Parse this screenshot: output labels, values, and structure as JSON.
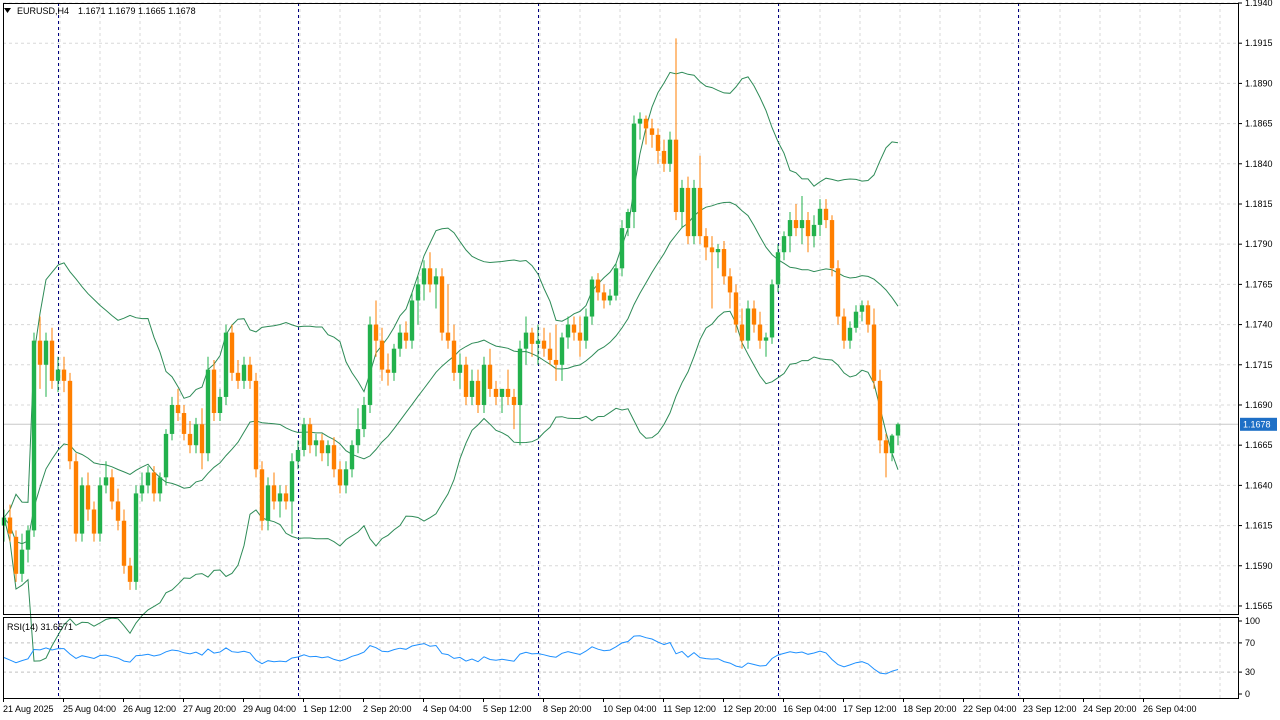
{
  "header": {
    "symbol_label": "EURUSD,H4",
    "ohlc_text": "1.1671 1.1679 1.1665 1.1678",
    "menu_icon": "triangle-down-icon"
  },
  "rsi": {
    "label": "RSI(14) 31.6571"
  },
  "current_price": {
    "label": "1.1678",
    "value": 1.1678
  },
  "colors": {
    "bull": "#22b14c",
    "bear": "#ff7f00",
    "bands": "#2e8b57",
    "rsi_line": "#1e90ff",
    "grid": "#d8d8d8",
    "separator": "#000080",
    "current_price_bg": "#1e6fc6"
  },
  "axis": {
    "price_ticks": [
      "1.1940",
      "1.1915",
      "1.1890",
      "1.1865",
      "1.1840",
      "1.1815",
      "1.1790",
      "1.1765",
      "1.1740",
      "1.1715",
      "1.1690",
      "1.1665",
      "1.1640",
      "1.1615",
      "1.1590",
      "1.1565"
    ],
    "rsi_ticks": [
      "100",
      "70",
      "30",
      "0"
    ],
    "time_labels": [
      "21 Aug 2025",
      "25 Aug 04:00",
      "26 Aug 12:00",
      "27 Aug 20:00",
      "29 Aug 04:00",
      "1 Sep 12:00",
      "2 Sep 20:00",
      "4 Sep 04:00",
      "5 Sep 12:00",
      "8 Sep 20:00",
      "10 Sep 04:00",
      "11 Sep 12:00",
      "12 Sep 20:00",
      "16 Sep 04:00",
      "17 Sep 12:00",
      "18 Sep 20:00",
      "22 Sep 04:00",
      "23 Sep 12:00",
      "24 Sep 20:00",
      "26 Sep 04:00"
    ]
  },
  "chart_data": {
    "type": "candlestick",
    "symbol": "EURUSD",
    "timeframe": "H4",
    "ylim": [
      1.156,
      1.194
    ],
    "rsi_ylim": [
      0,
      100
    ],
    "week_separators": [
      "25 Aug 2025",
      "1 Sep 2025",
      "8 Sep 2025",
      "15 Sep 2025",
      "22 Sep 2025"
    ],
    "candles": [
      [
        1.1615,
        1.1625,
        1.1605,
        1.162
      ],
      [
        1.162,
        1.1628,
        1.1605,
        1.161
      ],
      [
        1.1608,
        1.1612,
        1.158,
        1.1585
      ],
      [
        1.1585,
        1.161,
        1.158,
        1.16
      ],
      [
        1.16,
        1.1615,
        1.1592,
        1.1612
      ],
      [
        1.1612,
        1.1735,
        1.1608,
        1.173
      ],
      [
        1.173,
        1.1745,
        1.17,
        1.1715
      ],
      [
        1.1715,
        1.1735,
        1.1695,
        1.173
      ],
      [
        1.173,
        1.1738,
        1.17,
        1.1705
      ],
      [
        1.1705,
        1.172,
        1.1698,
        1.1712
      ],
      [
        1.1712,
        1.172,
        1.1698,
        1.1705
      ],
      [
        1.1705,
        1.171,
        1.165,
        1.1655
      ],
      [
        1.1655,
        1.166,
        1.1605,
        1.161
      ],
      [
        1.161,
        1.1645,
        1.1605,
        1.164
      ],
      [
        1.164,
        1.1648,
        1.1618,
        1.1625
      ],
      [
        1.1625,
        1.163,
        1.1605,
        1.161
      ],
      [
        1.161,
        1.1645,
        1.1605,
        1.164
      ],
      [
        1.164,
        1.1655,
        1.1635,
        1.1645
      ],
      [
        1.1645,
        1.165,
        1.1625,
        1.163
      ],
      [
        1.163,
        1.1638,
        1.1612,
        1.1618
      ],
      [
        1.1618,
        1.1625,
        1.1585,
        1.159
      ],
      [
        1.159,
        1.1595,
        1.1575,
        1.158
      ],
      [
        1.158,
        1.164,
        1.1575,
        1.1635
      ],
      [
        1.1635,
        1.1648,
        1.163,
        1.164
      ],
      [
        1.164,
        1.1652,
        1.1635,
        1.1648
      ],
      [
        1.1648,
        1.1652,
        1.163,
        1.1635
      ],
      [
        1.1635,
        1.1648,
        1.163,
        1.1645
      ],
      [
        1.1645,
        1.1675,
        1.164,
        1.1672
      ],
      [
        1.1672,
        1.1695,
        1.1668,
        1.169
      ],
      [
        1.169,
        1.17,
        1.168,
        1.1685
      ],
      [
        1.1685,
        1.169,
        1.1668,
        1.1672
      ],
      [
        1.1672,
        1.168,
        1.166,
        1.1665
      ],
      [
        1.1665,
        1.1682,
        1.166,
        1.1678
      ],
      [
        1.1678,
        1.1688,
        1.165,
        1.166
      ],
      [
        1.166,
        1.172,
        1.1655,
        1.1712
      ],
      [
        1.1712,
        1.1718,
        1.168,
        1.1685
      ],
      [
        1.1685,
        1.17,
        1.168,
        1.1695
      ],
      [
        1.1695,
        1.174,
        1.169,
        1.1735
      ],
      [
        1.1735,
        1.174,
        1.1705,
        1.171
      ],
      [
        1.171,
        1.1718,
        1.17,
        1.1705
      ],
      [
        1.1705,
        1.172,
        1.17,
        1.1715
      ],
      [
        1.1715,
        1.172,
        1.17,
        1.1705
      ],
      [
        1.1705,
        1.171,
        1.1645,
        1.165
      ],
      [
        1.165,
        1.1655,
        1.1612,
        1.1618
      ],
      [
        1.1618,
        1.1645,
        1.1612,
        1.164
      ],
      [
        1.164,
        1.1648,
        1.1625,
        1.163
      ],
      [
        1.163,
        1.164,
        1.162,
        1.1635
      ],
      [
        1.1635,
        1.164,
        1.1625,
        1.163
      ],
      [
        1.163,
        1.166,
        1.161,
        1.1655
      ],
      [
        1.1655,
        1.1668,
        1.165,
        1.1662
      ],
      [
        1.1662,
        1.1682,
        1.1658,
        1.1678
      ],
      [
        1.1678,
        1.1682,
        1.166,
        1.1665
      ],
      [
        1.1665,
        1.1672,
        1.1658,
        1.1668
      ],
      [
        1.1668,
        1.1672,
        1.1655,
        1.166
      ],
      [
        1.166,
        1.1668,
        1.1652,
        1.1665
      ],
      [
        1.1665,
        1.167,
        1.1645,
        1.165
      ],
      [
        1.165,
        1.1655,
        1.1635,
        1.164
      ],
      [
        1.164,
        1.1655,
        1.1635,
        1.165
      ],
      [
        1.165,
        1.1668,
        1.1645,
        1.1665
      ],
      [
        1.1665,
        1.1688,
        1.166,
        1.1675
      ],
      [
        1.1675,
        1.1695,
        1.167,
        1.169
      ],
      [
        1.169,
        1.1745,
        1.1685,
        1.174
      ],
      [
        1.174,
        1.1755,
        1.172,
        1.173
      ],
      [
        1.173,
        1.1738,
        1.1705,
        1.1712
      ],
      [
        1.1712,
        1.1722,
        1.1702,
        1.171
      ],
      [
        1.171,
        1.1728,
        1.1705,
        1.1725
      ],
      [
        1.1725,
        1.174,
        1.172,
        1.1735
      ],
      [
        1.1735,
        1.1742,
        1.1725,
        1.173
      ],
      [
        1.173,
        1.176,
        1.1725,
        1.1755
      ],
      [
        1.1755,
        1.177,
        1.174,
        1.1765
      ],
      [
        1.1765,
        1.178,
        1.1755,
        1.1775
      ],
      [
        1.1775,
        1.1785,
        1.176,
        1.1765
      ],
      [
        1.1765,
        1.1775,
        1.175,
        1.177
      ],
      [
        1.177,
        1.1775,
        1.173,
        1.1735
      ],
      [
        1.1735,
        1.1765,
        1.1725,
        1.173
      ],
      [
        1.173,
        1.174,
        1.1705,
        1.171
      ],
      [
        1.171,
        1.1722,
        1.17,
        1.1715
      ],
      [
        1.1715,
        1.172,
        1.169,
        1.1695
      ],
      [
        1.1695,
        1.1712,
        1.169,
        1.1705
      ],
      [
        1.1705,
        1.1712,
        1.1685,
        1.169
      ],
      [
        1.169,
        1.172,
        1.1685,
        1.1715
      ],
      [
        1.1715,
        1.1725,
        1.1695,
        1.17
      ],
      [
        1.17,
        1.1705,
        1.169,
        1.1695
      ],
      [
        1.1695,
        1.17,
        1.1685,
        1.17
      ],
      [
        1.17,
        1.1712,
        1.169,
        1.1695
      ],
      [
        1.1695,
        1.17,
        1.1675,
        1.169
      ],
      [
        1.169,
        1.173,
        1.1665,
        1.1725
      ],
      [
        1.1725,
        1.1745,
        1.1715,
        1.1735
      ],
      [
        1.1735,
        1.1738,
        1.172,
        1.1728
      ],
      [
        1.1728,
        1.174,
        1.1715,
        1.173
      ],
      [
        1.173,
        1.1738,
        1.172,
        1.1725
      ],
      [
        1.1725,
        1.1735,
        1.1715,
        1.1718
      ],
      [
        1.1718,
        1.174,
        1.1705,
        1.1715
      ],
      [
        1.1715,
        1.1735,
        1.1705,
        1.1732
      ],
      [
        1.1732,
        1.1745,
        1.1725,
        1.174
      ],
      [
        1.174,
        1.1745,
        1.173,
        1.1735
      ],
      [
        1.1735,
        1.1745,
        1.172,
        1.173
      ],
      [
        1.173,
        1.175,
        1.1725,
        1.1745
      ],
      [
        1.1745,
        1.177,
        1.174,
        1.1768
      ],
      [
        1.1768,
        1.1772,
        1.1755,
        1.176
      ],
      [
        1.176,
        1.1765,
        1.175,
        1.1755
      ],
      [
        1.1755,
        1.1762,
        1.1752,
        1.1758
      ],
      [
        1.1758,
        1.1778,
        1.1755,
        1.1775
      ],
      [
        1.1775,
        1.1805,
        1.177,
        1.18
      ],
      [
        1.18,
        1.1812,
        1.1795,
        1.181
      ],
      [
        1.181,
        1.187,
        1.18,
        1.1865
      ],
      [
        1.1865,
        1.1872,
        1.1855,
        1.1868
      ],
      [
        1.1868,
        1.187,
        1.1852,
        1.1862
      ],
      [
        1.1862,
        1.1868,
        1.185,
        1.1858
      ],
      [
        1.1858,
        1.1862,
        1.184,
        1.1848
      ],
      [
        1.1848,
        1.1855,
        1.1835,
        1.184
      ],
      [
        1.184,
        1.186,
        1.1835,
        1.1855
      ],
      [
        1.1855,
        1.1918,
        1.1805,
        1.181
      ],
      [
        1.181,
        1.183,
        1.18,
        1.1825
      ],
      [
        1.1825,
        1.1832,
        1.179,
        1.1795
      ],
      [
        1.1795,
        1.183,
        1.179,
        1.1825
      ],
      [
        1.1825,
        1.1845,
        1.179,
        1.1795
      ],
      [
        1.1795,
        1.18,
        1.178,
        1.1788
      ],
      [
        1.1788,
        1.1795,
        1.175,
        1.1785
      ],
      [
        1.1785,
        1.179,
        1.1775,
        1.1787
      ],
      [
        1.1787,
        1.1792,
        1.1765,
        1.177
      ],
      [
        1.177,
        1.1775,
        1.175,
        1.176
      ],
      [
        1.176,
        1.1765,
        1.1735,
        1.174
      ],
      [
        1.174,
        1.175,
        1.1725,
        1.173
      ],
      [
        1.173,
        1.1755,
        1.1725,
        1.175
      ],
      [
        1.175,
        1.1755,
        1.1735,
        1.174
      ],
      [
        1.174,
        1.1748,
        1.1725,
        1.173
      ],
      [
        1.173,
        1.1735,
        1.172,
        1.1732
      ],
      [
        1.1732,
        1.1768,
        1.1728,
        1.1765
      ],
      [
        1.1765,
        1.179,
        1.176,
        1.1785
      ],
      [
        1.1785,
        1.1798,
        1.178,
        1.1795
      ],
      [
        1.1795,
        1.181,
        1.1785,
        1.1805
      ],
      [
        1.1805,
        1.1815,
        1.1795,
        1.18
      ],
      [
        1.18,
        1.182,
        1.179,
        1.1805
      ],
      [
        1.1805,
        1.181,
        1.1785,
        1.1795
      ],
      [
        1.1795,
        1.1808,
        1.1788,
        1.1802
      ],
      [
        1.1802,
        1.1818,
        1.1795,
        1.1812
      ],
      [
        1.1812,
        1.1818,
        1.18,
        1.1805
      ],
      [
        1.1805,
        1.1808,
        1.177,
        1.1775
      ],
      [
        1.1775,
        1.178,
        1.174,
        1.1745
      ],
      [
        1.1745,
        1.175,
        1.1725,
        1.173
      ],
      [
        1.173,
        1.1742,
        1.1725,
        1.1738
      ],
      [
        1.1738,
        1.1752,
        1.1735,
        1.1748
      ],
      [
        1.1748,
        1.1755,
        1.1742,
        1.1752
      ],
      [
        1.1752,
        1.1755,
        1.1735,
        1.174
      ],
      [
        1.174,
        1.175,
        1.17,
        1.1705
      ],
      [
        1.1705,
        1.1712,
        1.166,
        1.1668
      ],
      [
        1.1668,
        1.1672,
        1.1645,
        1.166
      ],
      [
        1.166,
        1.1672,
        1.1655,
        1.1671
      ],
      [
        1.1671,
        1.1679,
        1.1665,
        1.1678
      ]
    ]
  }
}
